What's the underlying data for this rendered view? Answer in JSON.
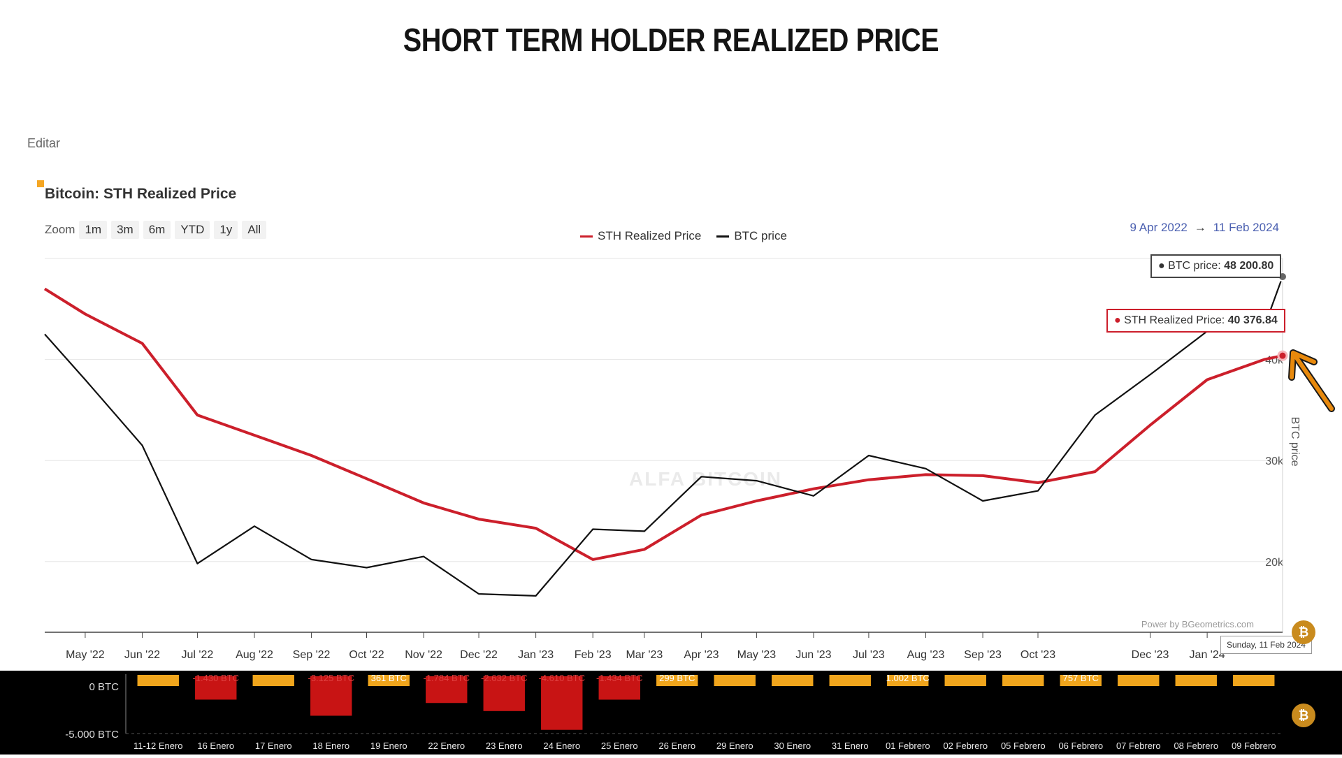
{
  "page_title": "SHORT TERM HOLDER REALIZED PRICE",
  "edit_label": "Editar",
  "chart_title": "Bitcoin: STH Realized Price",
  "zoom": {
    "label": "Zoom",
    "buttons": [
      "1m",
      "3m",
      "6m",
      "YTD",
      "1y",
      "All"
    ]
  },
  "legend": [
    {
      "name": "STH Realized Price",
      "color": "#cc1f2b"
    },
    {
      "name": "BTC price",
      "color": "#111111"
    }
  ],
  "date_range": {
    "from": "9 Apr 2022",
    "arrow": "→",
    "to": "11 Feb 2024"
  },
  "tooltips": {
    "btc": {
      "label": "BTC price: ",
      "value": "48 200.80"
    },
    "sth": {
      "label": "STH Realized Price: ",
      "value": "40 376.84"
    },
    "date": "Sunday, 11 Feb 2024"
  },
  "power_label": "Power by BGeometrics.com",
  "watermark": "ALFA BITCOIN",
  "colors": {
    "sth": "#cc1f2b",
    "btc": "#111111",
    "accent": "#f5a623",
    "arrow": "#e8890c",
    "range_text": "#4a5fb0"
  },
  "chart_data": {
    "type": "line",
    "title": "Bitcoin: STH Realized Price",
    "x_tick_labels": [
      "May '22",
      "Jun '22",
      "Jul '22",
      "Aug '22",
      "Sep '22",
      "Oct '22",
      "Nov '22",
      "Dec '22",
      "Jan '23",
      "Feb '23",
      "Mar '23",
      "Apr '23",
      "May '23",
      "Jun '23",
      "Jul '23",
      "Aug '23",
      "Sep '23",
      "Oct '23",
      "Dec '23",
      "Jan '24"
    ],
    "y_tick_labels": [
      "20k",
      "30k",
      "40k"
    ],
    "ylabel": "BTC price",
    "ylim": [
      13000,
      50000
    ],
    "grid": true,
    "x_dates": [
      "2022-04-09",
      "2022-05-01",
      "2022-06-01",
      "2022-07-01",
      "2022-08-01",
      "2022-09-01",
      "2022-10-01",
      "2022-11-01",
      "2022-12-01",
      "2023-01-01",
      "2023-02-01",
      "2023-03-01",
      "2023-04-01",
      "2023-05-01",
      "2023-06-01",
      "2023-07-01",
      "2023-08-01",
      "2023-09-01",
      "2023-10-01",
      "2023-11-01",
      "2023-12-01",
      "2024-01-01",
      "2024-02-01",
      "2024-02-11"
    ],
    "series": [
      {
        "name": "STH Realized Price",
        "values": [
          47000,
          44500,
          41600,
          34500,
          32500,
          30500,
          28200,
          25800,
          24200,
          23300,
          20200,
          21200,
          24600,
          26000,
          27200,
          28100,
          28600,
          28500,
          27800,
          28900,
          33500,
          38000,
          40000,
          40376.84
        ]
      },
      {
        "name": "BTC price",
        "values": [
          42500,
          38000,
          31500,
          19800,
          23500,
          20200,
          19400,
          20500,
          16800,
          16600,
          23200,
          23000,
          28400,
          28000,
          26500,
          30500,
          29200,
          26000,
          27000,
          34500,
          38500,
          42800,
          43200,
          48200.8
        ]
      }
    ]
  },
  "flows": {
    "zero_label": "0 BTC",
    "min_label": "-5.000 BTC",
    "dates": [
      "11-12 Enero",
      "16 Enero",
      "17 Enero",
      "18 Enero",
      "19 Enero",
      "22 Enero",
      "23 Enero",
      "24 Enero",
      "25 Enero",
      "26 Enero",
      "29 Enero",
      "30 Enero",
      "31 Enero",
      "01 Febrero",
      "02 Febrero",
      "05 Febrero",
      "06 Febrero",
      "07 Febrero",
      "08 Febrero",
      "09 Febrero"
    ],
    "values": [
      500,
      -1430,
      500,
      -3125,
      361,
      -1784,
      -2632,
      -4610,
      -1434,
      299,
      700,
      700,
      800,
      1002,
      700,
      600,
      757,
      700,
      700,
      700
    ],
    "labels": [
      "",
      "-1.430 BTC",
      "",
      "-3.125 BTC",
      "361 BTC",
      "-1.784 BTC",
      "-2.632 BTC",
      "-4.610 BTC",
      "-1.434 BTC",
      "299 BTC",
      "",
      "",
      "",
      "1.002 BTC",
      "",
      "",
      "757 BTC",
      "",
      "",
      ""
    ]
  }
}
